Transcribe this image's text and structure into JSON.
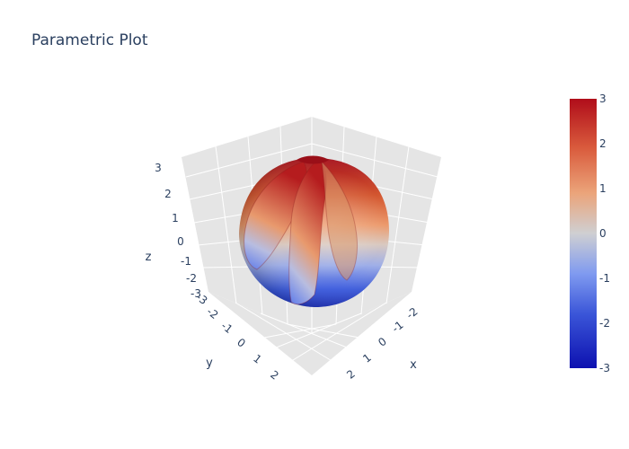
{
  "chart_data": {
    "type": "surface",
    "title": "Parametric Plot",
    "axes": {
      "x": {
        "label": "x",
        "ticks": [
          "-2",
          "-1",
          "0",
          "1",
          "2"
        ]
      },
      "y": {
        "label": "y",
        "ticks": [
          "-3",
          "-2",
          "-1",
          "0",
          "1",
          "2"
        ]
      },
      "z": {
        "label": "z",
        "ticks": [
          "3",
          "2",
          "1",
          "0",
          "-1",
          "-2",
          "-3"
        ],
        "range": [
          -3,
          3
        ]
      }
    },
    "surface": {
      "shape": "twisted sphere (shell with overlapping lobes)",
      "color_variable": "z",
      "extent": {
        "x": [
          -2,
          2
        ],
        "y": [
          -2,
          2
        ],
        "z": [
          -3,
          3
        ]
      }
    },
    "colorbar": {
      "colorscale": "red-white-blue diverging",
      "colors": [
        "#0d11b0",
        "#5a7ae8",
        "#c8c8cc",
        "#e89a68",
        "#d43a28",
        "#b01018"
      ],
      "range": [
        -3,
        3
      ],
      "ticks": [
        "3",
        "2",
        "1",
        "0",
        "-1",
        "-2",
        "-3"
      ]
    },
    "scene": {
      "background": "#e5e5e5",
      "grid": true,
      "gridcolor": "#ffffff"
    }
  }
}
